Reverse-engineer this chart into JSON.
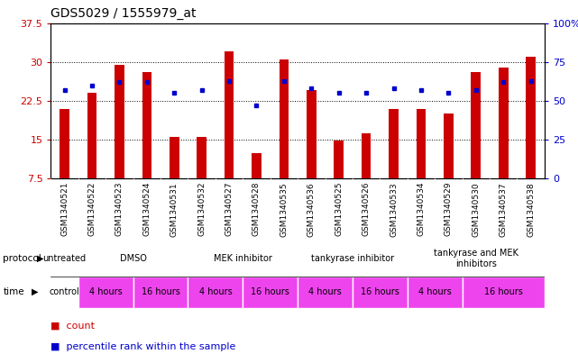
{
  "title": "GDS5029 / 1555979_at",
  "samples": [
    "GSM1340521",
    "GSM1340522",
    "GSM1340523",
    "GSM1340524",
    "GSM1340531",
    "GSM1340532",
    "GSM1340527",
    "GSM1340528",
    "GSM1340535",
    "GSM1340536",
    "GSM1340525",
    "GSM1340526",
    "GSM1340533",
    "GSM1340534",
    "GSM1340529",
    "GSM1340530",
    "GSM1340537",
    "GSM1340538"
  ],
  "counts": [
    21.0,
    24.0,
    29.5,
    28.0,
    15.5,
    15.5,
    32.0,
    12.5,
    30.5,
    24.5,
    14.8,
    16.2,
    21.0,
    21.0,
    20.0,
    28.0,
    29.0,
    31.0
  ],
  "percentiles": [
    57,
    60,
    62,
    62,
    55,
    57,
    63,
    47,
    63,
    58,
    55,
    55,
    58,
    57,
    55,
    57,
    62,
    63
  ],
  "ylim_left": [
    7.5,
    37.5
  ],
  "ylim_right": [
    0,
    100
  ],
  "yticks_left": [
    7.5,
    15.0,
    22.5,
    30.0,
    37.5
  ],
  "yticks_right": [
    0,
    25,
    50,
    75,
    100
  ],
  "ytick_labels_left": [
    "7.5",
    "15",
    "22.5",
    "30",
    "37.5"
  ],
  "ytick_labels_right": [
    "0",
    "25",
    "50",
    "75",
    "100%"
  ],
  "bar_color": "#cc0000",
  "dot_color": "#0000cc",
  "chart_bg": "#ffffff",
  "label_bg": "#d0d0d0",
  "protocol_color": "#99ff99",
  "time_color_control": "#ffffff",
  "time_color_hours": "#ee44ee",
  "protocol_groups": [
    {
      "label": "untreated",
      "start": 0,
      "end": 1
    },
    {
      "label": "DMSO",
      "start": 1,
      "end": 5
    },
    {
      "label": "MEK inhibitor",
      "start": 5,
      "end": 9
    },
    {
      "label": "tankyrase inhibitor",
      "start": 9,
      "end": 13
    },
    {
      "label": "tankyrase and MEK\ninhibitors",
      "start": 13,
      "end": 18
    }
  ],
  "time_groups": [
    {
      "label": "control",
      "start": 0,
      "end": 1,
      "is_control": true
    },
    {
      "label": "4 hours",
      "start": 1,
      "end": 3,
      "is_control": false
    },
    {
      "label": "16 hours",
      "start": 3,
      "end": 5,
      "is_control": false
    },
    {
      "label": "4 hours",
      "start": 5,
      "end": 7,
      "is_control": false
    },
    {
      "label": "16 hours",
      "start": 7,
      "end": 9,
      "is_control": false
    },
    {
      "label": "4 hours",
      "start": 9,
      "end": 11,
      "is_control": false
    },
    {
      "label": "16 hours",
      "start": 11,
      "end": 13,
      "is_control": false
    },
    {
      "label": "4 hours",
      "start": 13,
      "end": 15,
      "is_control": false
    },
    {
      "label": "16 hours",
      "start": 15,
      "end": 18,
      "is_control": false
    }
  ],
  "bar_width": 0.35
}
